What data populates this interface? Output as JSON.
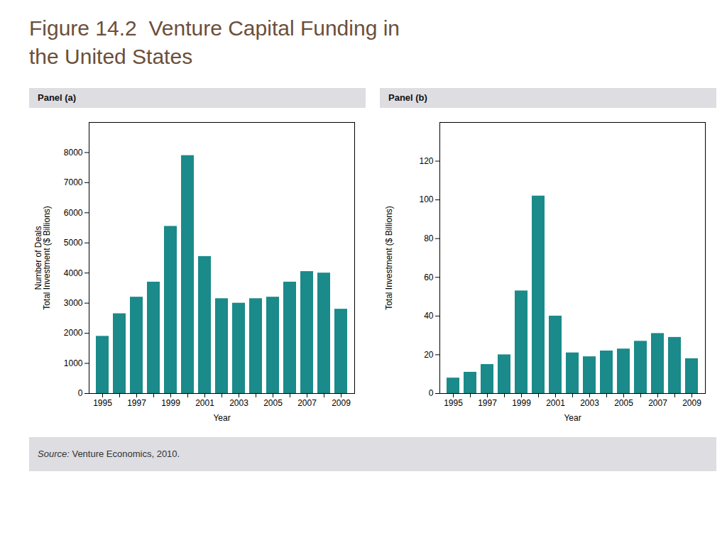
{
  "title": "Figure 14.2  Venture Capital Funding in\nthe United States",
  "caption": "Source: Venture Economics, 2010.",
  "chart_data": [
    {
      "type": "bar",
      "title": "Panel (a)",
      "xlabel": "Year",
      "ylabel": "Number of Deals\nTotal Investment ($ Billions)",
      "categories": [
        "1995",
        null,
        "1997",
        null,
        "1999",
        null,
        "2001",
        null,
        "2003",
        null,
        "2005",
        null,
        "2007",
        null,
        "2009"
      ],
      "values": [
        1900,
        2650,
        3200,
        3700,
        5550,
        7900,
        4550,
        3150,
        3000,
        3150,
        3200,
        3700,
        4050,
        4000,
        2800
      ],
      "color": "#1a8a8a",
      "ylim": [
        0,
        9000
      ],
      "yticks": [
        0,
        1000,
        2000,
        3000,
        4000,
        5000,
        6000,
        7000,
        8000
      ],
      "grid": false
    },
    {
      "type": "bar",
      "title": "Panel (b)",
      "xlabel": "Year",
      "ylabel": "Total Investment ($ Billions)",
      "categories": [
        "1995",
        null,
        "1997",
        null,
        "1999",
        null,
        "2001",
        null,
        "2003",
        null,
        "2005",
        null,
        "2007",
        null,
        "2009"
      ],
      "values": [
        8,
        11,
        15,
        20,
        53,
        102,
        40,
        21,
        19,
        22,
        23,
        27,
        31,
        29,
        18
      ],
      "color": "#1a8a8a",
      "ylim": [
        0,
        140
      ],
      "yticks": [
        0,
        20,
        40,
        60,
        80,
        100,
        120
      ],
      "grid": false
    }
  ]
}
